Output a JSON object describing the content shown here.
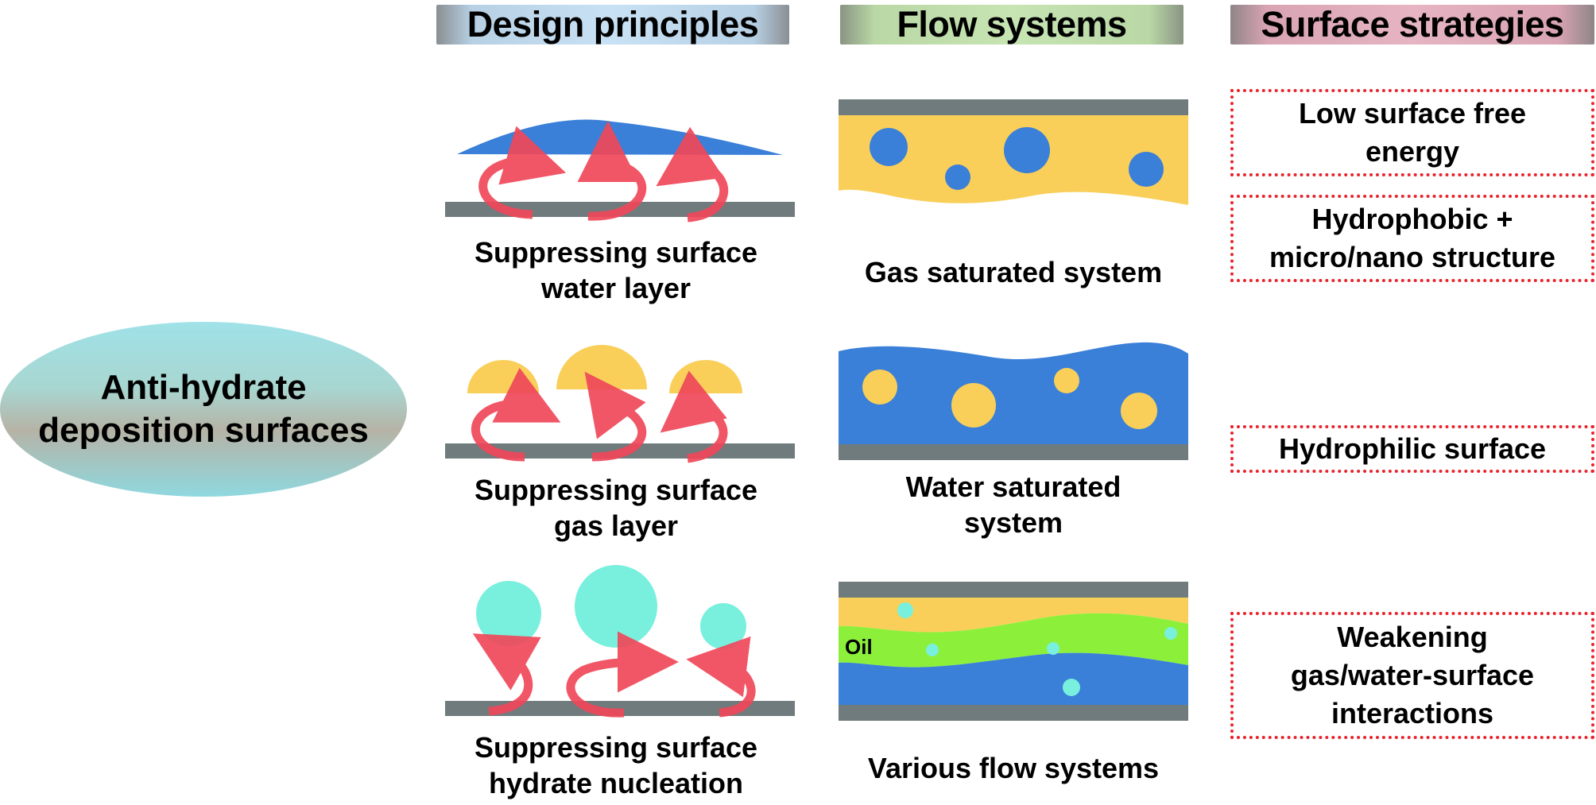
{
  "headers": {
    "design": "Design principles",
    "flow": "Flow systems",
    "surface": "Surface strategies"
  },
  "center": {
    "line1": "Anti-hydrate",
    "line2": "deposition surfaces"
  },
  "design_principles": [
    {
      "line1": "Suppressing surface",
      "line2": "water layer"
    },
    {
      "line1": "Suppressing surface",
      "line2": "gas layer"
    },
    {
      "line1": "Suppressing surface",
      "line2": "hydrate nucleation"
    }
  ],
  "flow_systems": [
    {
      "line1": "Gas saturated system",
      "line2": ""
    },
    {
      "line1": "Water saturated",
      "line2": "system"
    },
    {
      "line1": "Various flow systems",
      "line2": "",
      "oil_label": "Oil"
    }
  ],
  "surface_strategies": [
    {
      "line1": "Low surface free",
      "line2": "energy",
      "line3": ""
    },
    {
      "line1": "Hydrophobic +",
      "line2": "micro/nano structure",
      "line3": ""
    },
    {
      "line1": "Hydrophilic surface",
      "line2": "",
      "line3": ""
    },
    {
      "line1": "Weakening",
      "line2": "gas/water-surface",
      "line3": "interactions"
    }
  ],
  "colors": {
    "water": "#3a7fd8",
    "gas": "#f9cf5a",
    "hydrate": "#78f0dd",
    "oil": "#8cf03a",
    "substrate": "#6f7b7d",
    "arrow": "#f0485a",
    "dotted_border": "#e8242c"
  }
}
